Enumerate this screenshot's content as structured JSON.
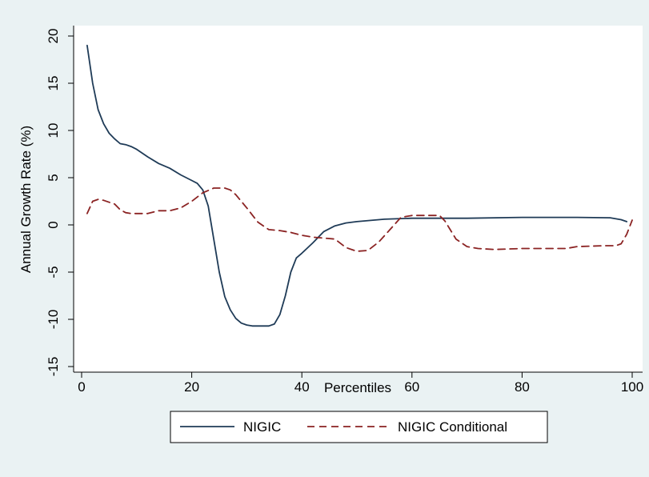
{
  "chart_data": {
    "type": "line",
    "title": "",
    "xlabel": "Percentiles",
    "ylabel": "Annual Growth Rate (%)",
    "xlim": [
      0,
      100
    ],
    "ylim": [
      -15,
      20
    ],
    "xticks": [
      0,
      20,
      40,
      60,
      80,
      100
    ],
    "yticks": [
      -15,
      -10,
      -5,
      0,
      5,
      10,
      15,
      20
    ],
    "grid": false,
    "legend": "bottom",
    "colors": {
      "background": "#eaf2f3",
      "plot_area": "#ffffff"
    },
    "series": [
      {
        "name": "NIGIC",
        "color": "#1f3b57",
        "dash": "solid",
        "x": [
          1,
          2,
          3,
          4,
          5,
          6,
          7,
          8,
          9,
          10,
          12,
          14,
          16,
          18,
          20,
          21,
          22,
          23,
          24,
          25,
          26,
          27,
          28,
          29,
          30,
          31,
          32,
          33,
          34,
          35,
          36,
          37,
          38,
          39,
          40,
          42,
          44,
          46,
          48,
          50,
          55,
          60,
          70,
          80,
          90,
          96,
          98,
          99
        ],
        "y": [
          19,
          15,
          12.2,
          10.7,
          9.7,
          9.1,
          8.6,
          8.5,
          8.3,
          8.0,
          7.2,
          6.5,
          6.0,
          5.3,
          4.7,
          4.4,
          3.7,
          2.0,
          -1.5,
          -5.0,
          -7.6,
          -9.0,
          -9.9,
          -10.4,
          -10.6,
          -10.7,
          -10.7,
          -10.7,
          -10.7,
          -10.5,
          -9.5,
          -7.5,
          -5.0,
          -3.5,
          -3.0,
          -1.9,
          -0.7,
          -0.1,
          0.2,
          0.35,
          0.6,
          0.7,
          0.7,
          0.8,
          0.8,
          0.75,
          0.55,
          0.35
        ]
      },
      {
        "name": "NIGIC Conditional",
        "color": "#8b2323",
        "dash": "dashed",
        "x": [
          1,
          2,
          3,
          4,
          5,
          6,
          7,
          8,
          9,
          10,
          12,
          14,
          16,
          18,
          20,
          22,
          24,
          26,
          27,
          28,
          30,
          32,
          34,
          36,
          38,
          40,
          42,
          44,
          46,
          48,
          50,
          52,
          54,
          56,
          58,
          60,
          62,
          64,
          65,
          66,
          68,
          70,
          72,
          75,
          80,
          85,
          88,
          90,
          95,
          97,
          98,
          99,
          100
        ],
        "y": [
          1.2,
          2.5,
          2.7,
          2.6,
          2.4,
          2.2,
          1.6,
          1.3,
          1.2,
          1.2,
          1.2,
          1.5,
          1.5,
          1.8,
          2.5,
          3.4,
          3.9,
          3.9,
          3.7,
          3.2,
          1.8,
          0.3,
          -0.5,
          -0.6,
          -0.8,
          -1.1,
          -1.3,
          -1.4,
          -1.5,
          -2.4,
          -2.8,
          -2.7,
          -1.8,
          -0.5,
          0.8,
          1.0,
          1.0,
          1.0,
          1.0,
          0.4,
          -1.5,
          -2.3,
          -2.5,
          -2.6,
          -2.5,
          -2.5,
          -2.5,
          -2.3,
          -2.2,
          -2.2,
          -2.0,
          -1.0,
          0.5
        ]
      }
    ]
  }
}
